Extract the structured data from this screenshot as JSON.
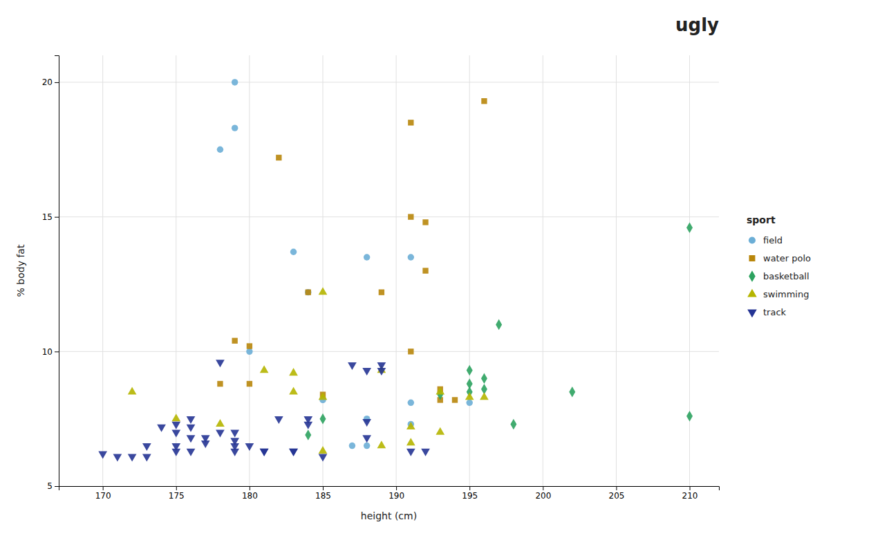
{
  "chart_data": {
    "type": "scatter",
    "title": "ugly",
    "xlabel": "height (cm)",
    "ylabel": "% body fat",
    "xlim": [
      167,
      212
    ],
    "ylim": [
      5,
      21
    ],
    "xticks": [
      170,
      175,
      180,
      185,
      190,
      195,
      200,
      205,
      210
    ],
    "yticks": [
      5,
      10,
      15,
      20
    ],
    "grid": true,
    "legend": "right",
    "legend_title": "sport",
    "series": [
      {
        "name": "field",
        "color": "#6baed6",
        "marker": "circle",
        "x": [
          179,
          179,
          178,
          183,
          184,
          188,
          191,
          185,
          188,
          191,
          191,
          195,
          187,
          188,
          180
        ],
        "values": [
          20.0,
          18.3,
          17.5,
          13.7,
          12.2,
          13.5,
          13.5,
          8.2,
          7.5,
          7.3,
          8.1,
          8.1,
          6.5,
          6.5,
          10.0
        ]
      },
      {
        "name": "water polo",
        "color": "#b8860b",
        "marker": "square",
        "x": [
          182,
          191,
          196,
          191,
          192,
          192,
          189,
          184,
          185,
          191,
          179,
          180,
          180,
          178,
          193,
          193,
          194
        ],
        "values": [
          17.2,
          18.5,
          19.3,
          15.0,
          14.8,
          13.0,
          12.2,
          12.2,
          8.4,
          10.0,
          10.4,
          10.2,
          8.8,
          8.8,
          8.6,
          8.2,
          8.2
        ]
      },
      {
        "name": "basketball",
        "color": "#2ca25f",
        "marker": "diamond",
        "x": [
          210,
          197,
          195,
          196,
          195,
          196,
          195,
          193,
          198,
          202,
          184,
          185,
          210
        ],
        "values": [
          14.6,
          11.0,
          9.3,
          9.0,
          8.8,
          8.6,
          8.5,
          8.4,
          7.3,
          8.5,
          6.9,
          7.5,
          7.6
        ]
      },
      {
        "name": "swimming",
        "color": "#b5b500",
        "marker": "triangle-up",
        "x": [
          172,
          175,
          178,
          181,
          183,
          183,
          185,
          185,
          189,
          191,
          191,
          193,
          193,
          195,
          196,
          185,
          189
        ],
        "values": [
          8.5,
          7.5,
          7.3,
          9.3,
          9.2,
          8.5,
          8.3,
          12.2,
          9.3,
          7.2,
          6.6,
          7.0,
          8.5,
          8.3,
          8.3,
          6.3,
          6.5
        ]
      },
      {
        "name": "track",
        "color": "#253494",
        "marker": "triangle-down",
        "x": [
          170,
          171,
          172,
          173,
          173,
          174,
          175,
          175,
          175,
          175,
          176,
          176,
          176,
          176,
          177,
          177,
          178,
          178,
          179,
          179,
          179,
          179,
          180,
          181,
          181,
          182,
          183,
          183,
          184,
          184,
          185,
          187,
          188,
          188,
          188,
          189,
          189,
          191,
          192
        ],
        "values": [
          6.2,
          6.1,
          6.1,
          6.1,
          6.5,
          7.2,
          7.3,
          7.0,
          6.5,
          6.3,
          7.5,
          7.2,
          6.8,
          6.3,
          6.8,
          6.6,
          9.6,
          7.0,
          7.0,
          6.7,
          6.5,
          6.3,
          6.5,
          6.3,
          6.3,
          7.5,
          6.3,
          6.3,
          7.5,
          7.3,
          6.1,
          9.5,
          9.3,
          7.4,
          6.8,
          9.5,
          9.3,
          6.3,
          6.3
        ]
      }
    ]
  }
}
